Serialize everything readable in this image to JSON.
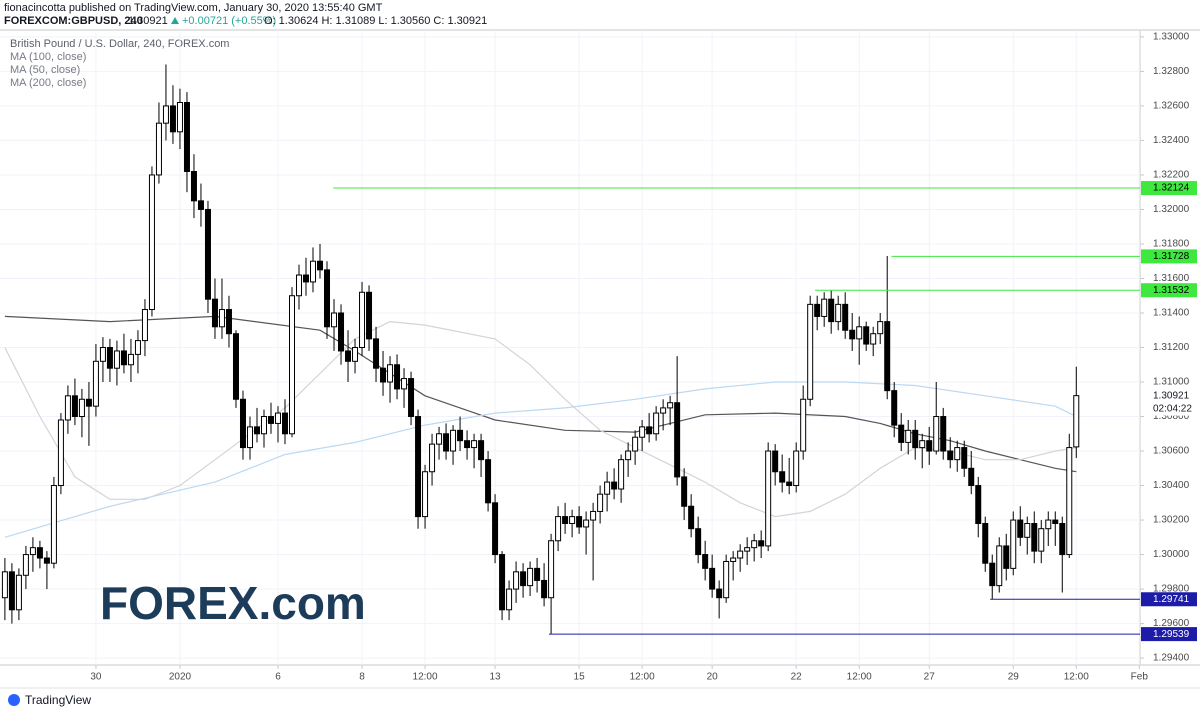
{
  "header": {
    "publisher": "fionacincotta published on TradingView.com, January 30, 2020 13:55:40 GMT",
    "symbol": "FOREXCOM:GBPUSD, 240",
    "last": "1.30921",
    "change": "+0.00721 (+0.55%)",
    "ohlc": "O: 1.30624  H: 1.31089  L: 1.30560  C: 1.30921"
  },
  "chart_data": {
    "type": "candlestick",
    "title": "British Pound / U.S. Dollar, 240, FOREX.com",
    "up_color": "#ffffff",
    "down_color": "#000000",
    "candles": [
      [
        1.2975,
        1.2998,
        1.2962,
        1.299
      ],
      [
        1.299,
        1.2995,
        1.296,
        1.2968
      ],
      [
        1.2968,
        1.2992,
        1.2962,
        1.2988
      ],
      [
        1.2988,
        1.3005,
        1.298,
        1.3
      ],
      [
        1.3,
        1.301,
        1.299,
        1.3004
      ],
      [
        1.3004,
        1.3008,
        1.2992,
        1.2998
      ],
      [
        1.2998,
        1.3002,
        1.298,
        1.2995
      ],
      [
        1.2995,
        1.3045,
        1.2992,
        1.304
      ],
      [
        1.304,
        1.3082,
        1.3035,
        1.3078
      ],
      [
        1.3078,
        1.3098,
        1.307,
        1.3092
      ],
      [
        1.3092,
        1.3102,
        1.3075,
        1.308
      ],
      [
        1.308,
        1.3096,
        1.3068,
        1.309
      ],
      [
        1.309,
        1.31,
        1.3063,
        1.3086
      ],
      [
        1.3086,
        1.3122,
        1.308,
        1.3112
      ],
      [
        1.3112,
        1.3126,
        1.31,
        1.312
      ],
      [
        1.312,
        1.3125,
        1.31,
        1.3108
      ],
      [
        1.3108,
        1.3124,
        1.3098,
        1.3118
      ],
      [
        1.3118,
        1.3128,
        1.3105,
        1.311
      ],
      [
        1.311,
        1.3125,
        1.31,
        1.3116
      ],
      [
        1.3116,
        1.313,
        1.3105,
        1.3124
      ],
      [
        1.3124,
        1.3148,
        1.3115,
        1.3142
      ],
      [
        1.3142,
        1.3225,
        1.3138,
        1.322
      ],
      [
        1.322,
        1.3262,
        1.3215,
        1.325
      ],
      [
        1.325,
        1.3284,
        1.324,
        1.326
      ],
      [
        1.326,
        1.3272,
        1.3238,
        1.3245
      ],
      [
        1.3245,
        1.327,
        1.3235,
        1.3262
      ],
      [
        1.3262,
        1.3268,
        1.321,
        1.3222
      ],
      [
        1.3222,
        1.3232,
        1.3195,
        1.3205
      ],
      [
        1.3205,
        1.3215,
        1.319,
        1.32
      ],
      [
        1.32,
        1.3205,
        1.314,
        1.3148
      ],
      [
        1.3148,
        1.316,
        1.3125,
        1.3132
      ],
      [
        1.3132,
        1.316,
        1.3125,
        1.3142
      ],
      [
        1.3142,
        1.315,
        1.312,
        1.3128
      ],
      [
        1.3128,
        1.313,
        1.3085,
        1.309
      ],
      [
        1.309,
        1.3095,
        1.3055,
        1.3062
      ],
      [
        1.3062,
        1.308,
        1.3055,
        1.3074
      ],
      [
        1.3074,
        1.3085,
        1.3065,
        1.307
      ],
      [
        1.307,
        1.3084,
        1.3062,
        1.308
      ],
      [
        1.308,
        1.3088,
        1.307,
        1.3076
      ],
      [
        1.3076,
        1.3086,
        1.3065,
        1.3082
      ],
      [
        1.3082,
        1.309,
        1.3064,
        1.307
      ],
      [
        1.307,
        1.3155,
        1.3068,
        1.315
      ],
      [
        1.315,
        1.3168,
        1.3142,
        1.3162
      ],
      [
        1.3162,
        1.3172,
        1.315,
        1.3158
      ],
      [
        1.3158,
        1.3178,
        1.3152,
        1.317
      ],
      [
        1.317,
        1.318,
        1.316,
        1.3165
      ],
      [
        1.3165,
        1.317,
        1.3125,
        1.3132
      ],
      [
        1.3132,
        1.3148,
        1.3118,
        1.314
      ],
      [
        1.314,
        1.3145,
        1.311,
        1.3118
      ],
      [
        1.3118,
        1.313,
        1.31,
        1.3112
      ],
      [
        1.3112,
        1.3125,
        1.3105,
        1.312
      ],
      [
        1.312,
        1.3158,
        1.3115,
        1.3152
      ],
      [
        1.3152,
        1.3156,
        1.3118,
        1.3125
      ],
      [
        1.3125,
        1.3132,
        1.31,
        1.3108
      ],
      [
        1.3108,
        1.3118,
        1.3092,
        1.31
      ],
      [
        1.31,
        1.3115,
        1.3088,
        1.311
      ],
      [
        1.311,
        1.3116,
        1.309,
        1.3096
      ],
      [
        1.3096,
        1.3108,
        1.3085,
        1.3102
      ],
      [
        1.3102,
        1.3106,
        1.3075,
        1.308
      ],
      [
        1.308,
        1.3084,
        1.3015,
        1.3022
      ],
      [
        1.3022,
        1.3052,
        1.3015,
        1.3048
      ],
      [
        1.3048,
        1.307,
        1.304,
        1.3064
      ],
      [
        1.3064,
        1.3074,
        1.3055,
        1.307
      ],
      [
        1.307,
        1.3076,
        1.3055,
        1.306
      ],
      [
        1.306,
        1.3075,
        1.3052,
        1.3072
      ],
      [
        1.3072,
        1.308,
        1.306,
        1.3066
      ],
      [
        1.3066,
        1.3072,
        1.3055,
        1.3062
      ],
      [
        1.3062,
        1.307,
        1.305,
        1.3066
      ],
      [
        1.3066,
        1.307,
        1.3045,
        1.3055
      ],
      [
        1.3055,
        1.306,
        1.3025,
        1.303
      ],
      [
        1.303,
        1.3035,
        1.2995,
        1.3
      ],
      [
        1.3,
        1.3002,
        1.2962,
        1.2968
      ],
      [
        1.2968,
        1.2985,
        1.2962,
        1.298
      ],
      [
        1.298,
        1.2996,
        1.2972,
        1.299
      ],
      [
        1.299,
        1.2995,
        1.2975,
        1.2982
      ],
      [
        1.2982,
        1.2996,
        1.2976,
        1.2992
      ],
      [
        1.2992,
        1.2998,
        1.2978,
        1.2985
      ],
      [
        1.2985,
        1.2995,
        1.297,
        1.2975
      ],
      [
        1.2975,
        1.3012,
        1.2954,
        1.3008
      ],
      [
        1.3008,
        1.3028,
        1.3002,
        1.3022
      ],
      [
        1.3022,
        1.303,
        1.3012,
        1.3018
      ],
      [
        1.3018,
        1.3026,
        1.301,
        1.3022
      ],
      [
        1.3022,
        1.3028,
        1.3012,
        1.3016
      ],
      [
        1.3016,
        1.3025,
        1.3,
        1.302
      ],
      [
        1.302,
        1.303,
        1.2985,
        1.3025
      ],
      [
        1.3025,
        1.304,
        1.3018,
        1.3035
      ],
      [
        1.3035,
        1.3048,
        1.3025,
        1.3042
      ],
      [
        1.3042,
        1.305,
        1.3032,
        1.3038
      ],
      [
        1.3038,
        1.3058,
        1.303,
        1.3055
      ],
      [
        1.3055,
        1.3065,
        1.3045,
        1.306
      ],
      [
        1.306,
        1.3072,
        1.3052,
        1.3068
      ],
      [
        1.3068,
        1.3078,
        1.306,
        1.3074
      ],
      [
        1.3074,
        1.3082,
        1.3065,
        1.307
      ],
      [
        1.307,
        1.3086,
        1.3066,
        1.3082
      ],
      [
        1.3082,
        1.309,
        1.3072,
        1.3085
      ],
      [
        1.3085,
        1.3092,
        1.3075,
        1.3088
      ],
      [
        1.3088,
        1.3115,
        1.304,
        1.3045
      ],
      [
        1.3045,
        1.305,
        1.302,
        1.3028
      ],
      [
        1.3028,
        1.3035,
        1.301,
        1.3015
      ],
      [
        1.3015,
        1.3022,
        1.2995,
        1.3
      ],
      [
        1.3,
        1.3008,
        1.2985,
        1.2992
      ],
      [
        1.2992,
        1.3,
        1.2975,
        1.298
      ],
      [
        1.298,
        1.2985,
        1.2963,
        1.2975
      ],
      [
        1.2975,
        1.3,
        1.2972,
        1.2996
      ],
      [
        1.2996,
        1.3002,
        1.2985,
        1.2998
      ],
      [
        1.2998,
        1.3006,
        1.299,
        1.3002
      ],
      [
        1.3002,
        1.301,
        1.2994,
        1.3004
      ],
      [
        1.3004,
        1.3012,
        1.2996,
        1.3008
      ],
      [
        1.3008,
        1.3014,
        1.2998,
        1.3005
      ],
      [
        1.3005,
        1.3065,
        1.3002,
        1.306
      ],
      [
        1.306,
        1.3064,
        1.304,
        1.3048
      ],
      [
        1.3048,
        1.3058,
        1.3036,
        1.3042
      ],
      [
        1.3042,
        1.3056,
        1.3035,
        1.304
      ],
      [
        1.304,
        1.3065,
        1.3036,
        1.306
      ],
      [
        1.306,
        1.3098,
        1.3055,
        1.309
      ],
      [
        1.309,
        1.315,
        1.3086,
        1.3145
      ],
      [
        1.3145,
        1.315,
        1.313,
        1.3138
      ],
      [
        1.3138,
        1.3152,
        1.3132,
        1.3148
      ],
      [
        1.3148,
        1.3153,
        1.3128,
        1.3135
      ],
      [
        1.3135,
        1.315,
        1.313,
        1.3145
      ],
      [
        1.3145,
        1.3152,
        1.3125,
        1.313
      ],
      [
        1.313,
        1.314,
        1.3118,
        1.3125
      ],
      [
        1.3125,
        1.3138,
        1.311,
        1.3132
      ],
      [
        1.3132,
        1.3135,
        1.3118,
        1.3122
      ],
      [
        1.3122,
        1.3132,
        1.3115,
        1.3128
      ],
      [
        1.3128,
        1.314,
        1.3122,
        1.3135
      ],
      [
        1.3135,
        1.3173,
        1.309,
        1.3095
      ],
      [
        1.3095,
        1.31,
        1.3068,
        1.3075
      ],
      [
        1.3075,
        1.3082,
        1.306,
        1.3065
      ],
      [
        1.3065,
        1.3078,
        1.3058,
        1.3072
      ],
      [
        1.3072,
        1.3078,
        1.3055,
        1.3062
      ],
      [
        1.3062,
        1.307,
        1.305,
        1.3066
      ],
      [
        1.3066,
        1.3074,
        1.3052,
        1.306
      ],
      [
        1.306,
        1.31,
        1.3058,
        1.308
      ],
      [
        1.308,
        1.3085,
        1.3055,
        1.306
      ],
      [
        1.306,
        1.3068,
        1.305,
        1.3055
      ],
      [
        1.3055,
        1.3066,
        1.3048,
        1.3062
      ],
      [
        1.3062,
        1.3066,
        1.3045,
        1.305
      ],
      [
        1.305,
        1.306,
        1.3035,
        1.304
      ],
      [
        1.304,
        1.3045,
        1.301,
        1.3018
      ],
      [
        1.3018,
        1.3022,
        1.299,
        1.2995
      ],
      [
        1.2995,
        1.3,
        1.2974,
        1.2982
      ],
      [
        1.2982,
        1.301,
        1.2978,
        1.3005
      ],
      [
        1.3005,
        1.3012,
        1.2985,
        1.2992
      ],
      [
        1.2992,
        1.3025,
        1.2988,
        1.302
      ],
      [
        1.302,
        1.3028,
        1.3005,
        1.301
      ],
      [
        1.301,
        1.3022,
        1.3,
        1.3018
      ],
      [
        1.3018,
        1.3025,
        1.2995,
        1.3002
      ],
      [
        1.3002,
        1.302,
        1.2995,
        1.3015
      ],
      [
        1.3015,
        1.3025,
        1.3005,
        1.302
      ],
      [
        1.302,
        1.3025,
        1.3005,
        1.3018
      ],
      [
        1.3018,
        1.3022,
        1.2978,
        1.3
      ],
      [
        1.3,
        1.307,
        1.2998,
        1.3062
      ],
      [
        1.30624,
        1.31089,
        1.3056,
        1.30921
      ]
    ],
    "series": [
      {
        "name": "MA (100, close)",
        "color": "#555555",
        "x": [
          0,
          15,
          30,
          45,
          50,
          55,
          60,
          65,
          70,
          80,
          90,
          95,
          100,
          110,
          120,
          125,
          130,
          135,
          140,
          145,
          150,
          153
        ],
        "values": [
          1.3138,
          1.3135,
          1.3138,
          1.313,
          1.3118,
          1.3105,
          1.3092,
          1.3085,
          1.3078,
          1.3072,
          1.3071,
          1.3076,
          1.3081,
          1.3082,
          1.308,
          1.3076,
          1.307,
          1.3066,
          1.306,
          1.3055,
          1.305,
          1.3048
        ]
      },
      {
        "name": "MA (50, close)",
        "color": "#d4d4d8",
        "x": [
          0,
          5,
          10,
          15,
          20,
          25,
          30,
          35,
          40,
          45,
          50,
          55,
          60,
          70,
          75,
          80,
          85,
          90,
          95,
          100,
          105,
          110,
          115,
          120,
          125,
          130,
          135,
          140,
          145,
          150,
          153
        ],
        "values": [
          1.312,
          1.308,
          1.3045,
          1.3032,
          1.3032,
          1.304,
          1.3055,
          1.307,
          1.3085,
          1.3105,
          1.3125,
          1.3135,
          1.3133,
          1.3125,
          1.311,
          1.309,
          1.3072,
          1.3062,
          1.3052,
          1.3042,
          1.303,
          1.3022,
          1.3025,
          1.3035,
          1.305,
          1.3062,
          1.306,
          1.3055,
          1.3055,
          1.306,
          1.3062
        ]
      },
      {
        "name": "MA (200, close)",
        "color": "#bcd8f2",
        "x": [
          0,
          15,
          30,
          40,
          50,
          60,
          70,
          80,
          90,
          100,
          110,
          120,
          130,
          140,
          150,
          153
        ],
        "values": [
          1.301,
          1.3028,
          1.3042,
          1.3058,
          1.3065,
          1.3075,
          1.3082,
          1.3085,
          1.309,
          1.3096,
          1.31,
          1.31,
          1.3098,
          1.3092,
          1.3086,
          1.308
        ]
      }
    ],
    "levels": [
      {
        "value": 1.32124,
        "from": 46.9,
        "color": "#3ee83e",
        "text_color": "#000000"
      },
      {
        "value": 1.31728,
        "from": 126.6,
        "color": "#3ee83e",
        "text_color": "#000000"
      },
      {
        "value": 1.31532,
        "from": 115.7,
        "color": "#3ee83e",
        "text_color": "#000000"
      },
      {
        "value": 1.29741,
        "from": 140.7,
        "color": "#1c1ca8",
        "text_color": "#ffffff"
      },
      {
        "value": 1.29539,
        "from": 77.7,
        "color": "#1c1ca8",
        "text_color": "#ffffff"
      }
    ],
    "countdown": "02:04:22",
    "xlim": [
      -0.7,
      162.1
    ],
    "ylim": [
      1.2936,
      1.3304
    ],
    "xticks": [
      {
        "value": 13,
        "label": "30"
      },
      {
        "value": 25,
        "label": "2020"
      },
      {
        "value": 39,
        "label": "6"
      },
      {
        "value": 51,
        "label": "8"
      },
      {
        "value": 60,
        "label": "12:00"
      },
      {
        "value": 70,
        "label": "13"
      },
      {
        "value": 82,
        "label": "15"
      },
      {
        "value": 91,
        "label": "12:00"
      },
      {
        "value": 101,
        "label": "20"
      },
      {
        "value": 113,
        "label": "22"
      },
      {
        "value": 122,
        "label": "12:00"
      },
      {
        "value": 132,
        "label": "27"
      },
      {
        "value": 144,
        "label": "29"
      },
      {
        "value": 153,
        "label": "12:00"
      },
      {
        "value": 162,
        "label": "Feb"
      }
    ],
    "yticks": [
      {
        "value": 1.294,
        "label": "1.29400"
      },
      {
        "value": 1.296,
        "label": "1.29600"
      },
      {
        "value": 1.298,
        "label": "1.29800"
      },
      {
        "value": 1.3,
        "label": "1.30000"
      },
      {
        "value": 1.302,
        "label": "1.30200"
      },
      {
        "value": 1.304,
        "label": "1.30400"
      },
      {
        "value": 1.306,
        "label": "1.30600"
      },
      {
        "value": 1.308,
        "label": "1.30800"
      },
      {
        "value": 1.31,
        "label": "1.31000"
      },
      {
        "value": 1.312,
        "label": "1.31200"
      },
      {
        "value": 1.314,
        "label": "1.31400"
      },
      {
        "value": 1.316,
        "label": "1.31600"
      },
      {
        "value": 1.318,
        "label": "1.31800"
      },
      {
        "value": 1.32,
        "label": "1.32000"
      },
      {
        "value": 1.322,
        "label": "1.32200"
      },
      {
        "value": 1.324,
        "label": "1.32400"
      },
      {
        "value": 1.326,
        "label": "1.32600"
      },
      {
        "value": 1.328,
        "label": "1.32800"
      },
      {
        "value": 1.33,
        "label": "1.33000"
      }
    ],
    "grid": true,
    "watermark": "FOREX.com",
    "brand": "TradingView"
  }
}
